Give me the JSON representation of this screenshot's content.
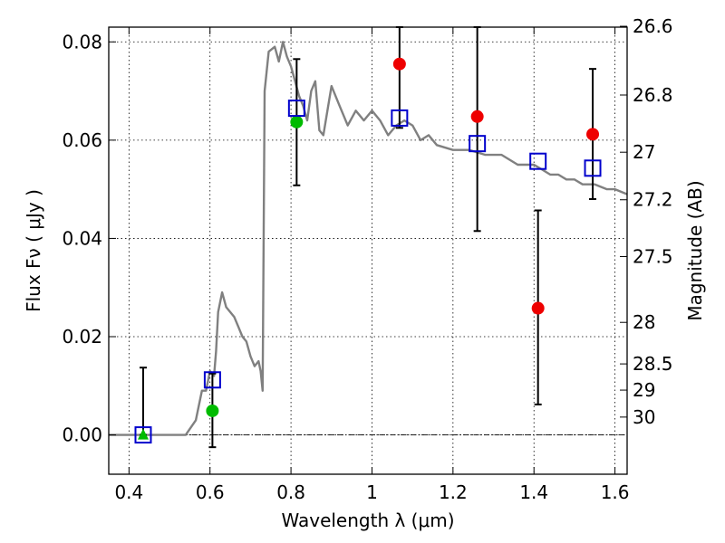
{
  "chart_data": {
    "type": "scatter",
    "xlabel": "Wavelength  λ (μm)",
    "ylabel": "Flux  Fν  ( μJy )",
    "y2label": "Magnitude (AB)",
    "xlim": [
      0.35,
      1.63
    ],
    "ylim": [
      -0.008,
      0.083
    ],
    "grid": true,
    "x_ticks": [
      0.4,
      0.6,
      0.8,
      1.0,
      1.2,
      1.4,
      1.6
    ],
    "x_tick_labels": [
      "0.4",
      "0.6",
      "0.8",
      "1",
      "1.2",
      "1.4",
      "1.6"
    ],
    "y_ticks": [
      0.0,
      0.02,
      0.04,
      0.06,
      0.08
    ],
    "y_tick_labels": [
      "0.00",
      "0.02",
      "0.04",
      "0.06",
      "0.08"
    ],
    "mag_ticks": [
      "26.6",
      "26.8",
      "27",
      "27.2",
      "27.5",
      "28",
      "28.5",
      "29",
      "30"
    ],
    "colors": {
      "sed": "#808080",
      "model": "#0000cc",
      "detection": "#ee0000",
      "lowsn": "#00bb00",
      "errorbar": "#000000"
    },
    "series": [
      {
        "name": "Model SED",
        "style": "line",
        "x": [
          0.35,
          0.54,
          0.565,
          0.58,
          0.59,
          0.6,
          0.61,
          0.615,
          0.62,
          0.63,
          0.64,
          0.65,
          0.66,
          0.67,
          0.68,
          0.69,
          0.7,
          0.71,
          0.72,
          0.725,
          0.73,
          0.735,
          0.745,
          0.76,
          0.77,
          0.78,
          0.79,
          0.8,
          0.81,
          0.82,
          0.83,
          0.84,
          0.85,
          0.86,
          0.87,
          0.88,
          0.9,
          0.92,
          0.94,
          0.96,
          0.98,
          1.0,
          1.02,
          1.04,
          1.06,
          1.08,
          1.1,
          1.12,
          1.14,
          1.16,
          1.2,
          1.24,
          1.28,
          1.32,
          1.36,
          1.4,
          1.42,
          1.44,
          1.46,
          1.48,
          1.5,
          1.52,
          1.55,
          1.58,
          1.6,
          1.63
        ],
        "y": [
          0.0,
          0.0,
          0.003,
          0.009,
          0.009,
          0.013,
          0.012,
          0.017,
          0.025,
          0.029,
          0.026,
          0.025,
          0.024,
          0.022,
          0.02,
          0.019,
          0.016,
          0.014,
          0.015,
          0.013,
          0.009,
          0.07,
          0.078,
          0.079,
          0.076,
          0.08,
          0.077,
          0.075,
          0.072,
          0.069,
          0.067,
          0.064,
          0.07,
          0.072,
          0.062,
          0.061,
          0.071,
          0.067,
          0.063,
          0.066,
          0.064,
          0.066,
          0.064,
          0.061,
          0.063,
          0.064,
          0.063,
          0.06,
          0.061,
          0.059,
          0.058,
          0.058,
          0.057,
          0.057,
          0.055,
          0.055,
          0.054,
          0.053,
          0.053,
          0.052,
          0.052,
          0.051,
          0.051,
          0.05,
          0.05,
          0.049
        ]
      },
      {
        "name": "Model photometry",
        "marker": "open-square",
        "x": [
          0.435,
          0.606,
          0.814,
          1.068,
          1.26,
          1.41,
          1.545
        ],
        "y": [
          0.0,
          0.0112,
          0.0665,
          0.0645,
          0.0593,
          0.0557,
          0.0543
        ]
      },
      {
        "name": "Observed flux",
        "marker": "red-circle",
        "x": [
          1.068,
          1.26,
          1.41,
          1.545
        ],
        "y": [
          0.0755,
          0.0648,
          0.0258,
          0.0612
        ],
        "yerr_low": [
          0.0625,
          0.0415,
          0.0062,
          0.048
        ],
        "yerr_high": [
          0.083,
          0.083,
          0.0457,
          0.0745
        ]
      },
      {
        "name": "Low S/N flux",
        "marker": "green-circle",
        "x": [
          0.606,
          0.814
        ],
        "y": [
          0.0049,
          0.0637
        ],
        "yerr_low": [
          -0.0025,
          0.0508
        ],
        "yerr_high": [
          0.0125,
          0.0765
        ]
      },
      {
        "name": "Upper limit",
        "marker": "green-triangle",
        "x": [
          0.435
        ],
        "y": [
          0.0
        ],
        "yerr_low": [
          0.0
        ],
        "yerr_high": [
          0.0137
        ]
      }
    ]
  }
}
